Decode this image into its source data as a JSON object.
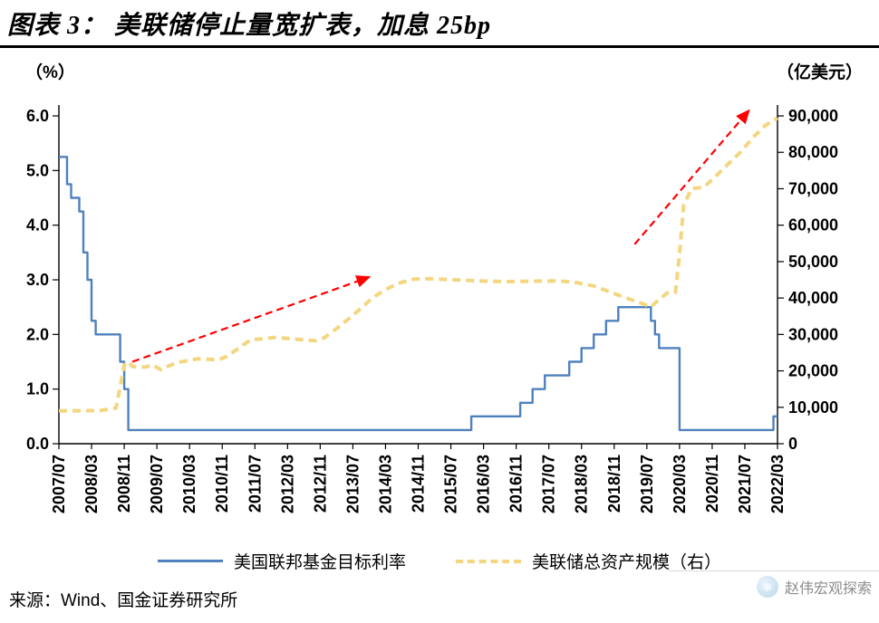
{
  "header": {
    "title": "图表 3：  美联储停止量宽扩表，加息 25bp"
  },
  "chart_data": {
    "type": "line",
    "title": "美联储停止量宽扩表，加息 25bp",
    "left_axis": {
      "label": "（%）",
      "min": 0,
      "max": 6,
      "ticks": [
        "6.0",
        "5.0",
        "4.0",
        "3.0",
        "2.0",
        "1.0",
        "0.0"
      ]
    },
    "right_axis": {
      "label": "（亿美元）",
      "min": 0,
      "max": 90000,
      "ticks": [
        "90,000",
        "80,000",
        "70,000",
        "60,000",
        "50,000",
        "40,000",
        "30,000",
        "20,000",
        "10,000",
        "0"
      ]
    },
    "x_start": "2007/07",
    "x_end": "2022/03",
    "x_ticks": [
      "2007/07",
      "2008/03",
      "2008/11",
      "2009/07",
      "2010/03",
      "2010/11",
      "2011/07",
      "2012/03",
      "2012/11",
      "2013/07",
      "2014/03",
      "2014/11",
      "2015/07",
      "2016/03",
      "2016/11",
      "2017/07",
      "2018/03",
      "2018/11",
      "2019/07",
      "2020/03",
      "2020/11",
      "2021/07",
      "2022/03"
    ],
    "grid": false,
    "legend_position": "bottom",
    "series": [
      {
        "name": "美国联邦基金目标利率",
        "axis": "left",
        "style": "step",
        "color": "#4f81bd",
        "points": [
          [
            "2007/07",
            5.25
          ],
          [
            "2007/09",
            4.75
          ],
          [
            "2007/10",
            4.5
          ],
          [
            "2007/12",
            4.25
          ],
          [
            "2008/01",
            3.5
          ],
          [
            "2008/02",
            3.0
          ],
          [
            "2008/03",
            2.25
          ],
          [
            "2008/04",
            2.0
          ],
          [
            "2008/10",
            1.5
          ],
          [
            "2008/11",
            1.0
          ],
          [
            "2008/12",
            0.25
          ],
          [
            "2015/12",
            0.5
          ],
          [
            "2016/12",
            0.75
          ],
          [
            "2017/03",
            1.0
          ],
          [
            "2017/06",
            1.25
          ],
          [
            "2017/12",
            1.5
          ],
          [
            "2018/03",
            1.75
          ],
          [
            "2018/06",
            2.0
          ],
          [
            "2018/09",
            2.25
          ],
          [
            "2018/12",
            2.5
          ],
          [
            "2019/08",
            2.25
          ],
          [
            "2019/09",
            2.0
          ],
          [
            "2019/10",
            1.75
          ],
          [
            "2020/03",
            0.25
          ],
          [
            "2022/02",
            0.5
          ]
        ]
      },
      {
        "name": "美联储总资产规模（右）",
        "axis": "right",
        "style": "dashed",
        "color": "#f3d67f",
        "points": [
          [
            "2007/07",
            9000
          ],
          [
            "2008/05",
            9100
          ],
          [
            "2008/09",
            9800
          ],
          [
            "2008/11",
            21500
          ],
          [
            "2008/12",
            22600
          ],
          [
            "2009/01",
            21200
          ],
          [
            "2009/04",
            21000
          ],
          [
            "2009/06",
            21600
          ],
          [
            "2009/08",
            20300
          ],
          [
            "2009/10",
            21400
          ],
          [
            "2009/12",
            22300
          ],
          [
            "2010/03",
            22900
          ],
          [
            "2010/05",
            23300
          ],
          [
            "2010/08",
            23200
          ],
          [
            "2010/10",
            23000
          ],
          [
            "2010/12",
            23900
          ],
          [
            "2011/03",
            26200
          ],
          [
            "2011/06",
            28600
          ],
          [
            "2011/09",
            28800
          ],
          [
            "2011/12",
            29200
          ],
          [
            "2012/03",
            28900
          ],
          [
            "2012/07",
            28500
          ],
          [
            "2012/10",
            28300
          ],
          [
            "2012/12",
            29100
          ],
          [
            "2013/03",
            31600
          ],
          [
            "2013/06",
            34300
          ],
          [
            "2013/09",
            37200
          ],
          [
            "2013/12",
            40200
          ],
          [
            "2014/03",
            42300
          ],
          [
            "2014/06",
            44000
          ],
          [
            "2014/10",
            45200
          ],
          [
            "2015/02",
            45300
          ],
          [
            "2015/08",
            45000
          ],
          [
            "2016/02",
            44700
          ],
          [
            "2016/08",
            44500
          ],
          [
            "2017/02",
            44600
          ],
          [
            "2017/09",
            44700
          ],
          [
            "2018/01",
            44400
          ],
          [
            "2018/06",
            43300
          ],
          [
            "2018/12",
            40800
          ],
          [
            "2019/04",
            39200
          ],
          [
            "2019/08",
            37600
          ],
          [
            "2019/10",
            39600
          ],
          [
            "2019/12",
            41400
          ],
          [
            "2020/02",
            41600
          ],
          [
            "2020/03",
            52000
          ],
          [
            "2020/04",
            65500
          ],
          [
            "2020/06",
            70100
          ],
          [
            "2020/09",
            70400
          ],
          [
            "2020/12",
            73600
          ],
          [
            "2021/03",
            76900
          ],
          [
            "2021/06",
            80100
          ],
          [
            "2021/09",
            84100
          ],
          [
            "2021/12",
            87400
          ],
          [
            "2022/03",
            89400
          ]
        ]
      }
    ],
    "annotations": [
      {
        "type": "arrow",
        "color": "#ff0000",
        "from": [
          "2009/01",
          1.5
        ],
        "to": [
          "2013/11",
          3.05
        ]
      },
      {
        "type": "arrow",
        "color": "#ff0000",
        "from": [
          "2019/04",
          3.65
        ],
        "to": [
          "2021/08",
          6.1
        ]
      }
    ]
  },
  "footer": {
    "source": "来源：Wind、国金证券研究所",
    "watermark": "赵伟宏观探索"
  }
}
